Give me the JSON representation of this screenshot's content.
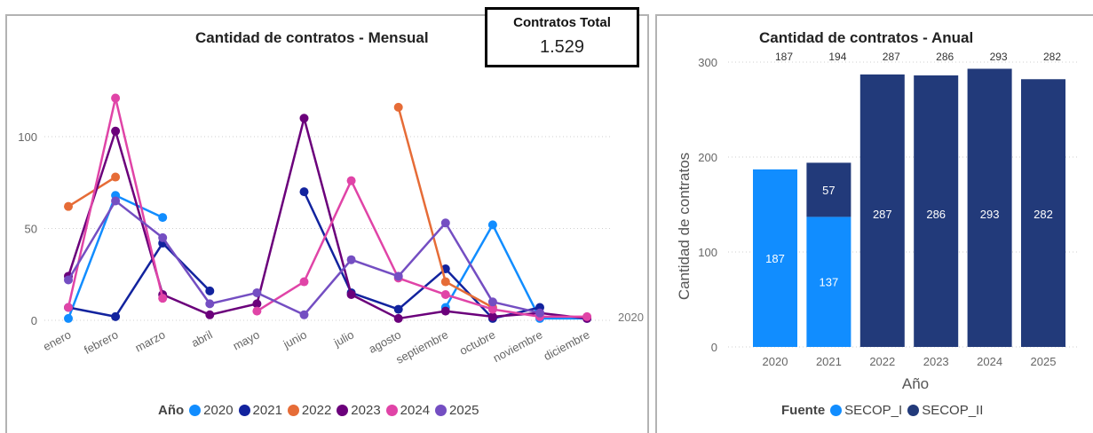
{
  "kpi": {
    "label": "Contratos Total",
    "value": "1.529"
  },
  "colors": {
    "2020": "#118DFF",
    "2021": "#12239E",
    "2022": "#E66C37",
    "2023": "#6B007B",
    "2024": "#E044A7",
    "2025": "#744EC2",
    "SECOP_I": "#118DFF",
    "SECOP_II": "#223A7A"
  },
  "chart_data": [
    {
      "type": "line",
      "title": "Cantidad de contratos - Mensual",
      "categories": [
        "enero",
        "febrero",
        "marzo",
        "abril",
        "mayo",
        "junio",
        "julio",
        "agosto",
        "septiembre",
        "octubre",
        "noviembre",
        "diciembre"
      ],
      "ylim": [
        0,
        130
      ],
      "yticks": [
        0,
        50,
        100
      ],
      "grid": true,
      "end_label": "2020",
      "legend_title": "Año",
      "legend_position": "bottom",
      "series": [
        {
          "name": "2020",
          "values": [
            1,
            68,
            56,
            null,
            null,
            null,
            null,
            null,
            7,
            52,
            1,
            1
          ]
        },
        {
          "name": "2021",
          "values": [
            7,
            2,
            42,
            16,
            null,
            70,
            15,
            6,
            28,
            1,
            7,
            null
          ]
        },
        {
          "name": "2022",
          "values": [
            62,
            78,
            null,
            null,
            null,
            null,
            null,
            116,
            21,
            7,
            null,
            null
          ]
        },
        {
          "name": "2023",
          "values": [
            24,
            103,
            14,
            3,
            9,
            110,
            14,
            1,
            5,
            2,
            4,
            1
          ]
        },
        {
          "name": "2024",
          "values": [
            7,
            121,
            12,
            null,
            5,
            21,
            76,
            23,
            14,
            6,
            2,
            2
          ]
        },
        {
          "name": "2025",
          "values": [
            22,
            65,
            45,
            9,
            15,
            3,
            33,
            24,
            53,
            10,
            4,
            null
          ]
        }
      ]
    },
    {
      "type": "bar",
      "title": "Cantidad de contratos - Anual",
      "categories": [
        "2020",
        "2021",
        "2022",
        "2023",
        "2024",
        "2025"
      ],
      "xlabel": "Año",
      "ylabel": "Cantidad de contratos",
      "ylim": [
        0,
        300
      ],
      "yticks": [
        0,
        100,
        200,
        300
      ],
      "grid": true,
      "stacked": true,
      "totals": [
        187,
        194,
        287,
        286,
        293,
        282
      ],
      "legend_title": "Fuente",
      "legend_position": "bottom",
      "series": [
        {
          "name": "SECOP_I",
          "values": [
            187,
            137,
            0,
            0,
            0,
            0
          ]
        },
        {
          "name": "SECOP_II",
          "values": [
            0,
            57,
            287,
            286,
            293,
            282
          ]
        }
      ]
    }
  ]
}
